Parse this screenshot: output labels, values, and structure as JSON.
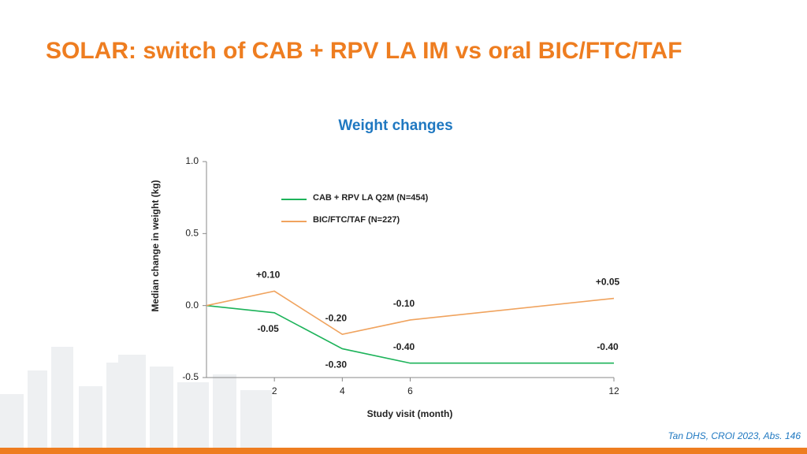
{
  "title": "SOLAR: switch of CAB + RPV LA IM vs oral BIC/FTC/TAF",
  "citation": "Tan DHS, CROI 2023, Abs. 146",
  "chart_data": {
    "type": "line",
    "title": "Weight changes",
    "x_label": "Study visit (month)",
    "y_label": "Median change in weight (kg)",
    "x": [
      0,
      2,
      4,
      6,
      12
    ],
    "series": [
      {
        "name": "CAB + RPV LA Q2M (N=454)",
        "color": "#1db35a",
        "values": [
          0,
          -0.05,
          -0.3,
          -0.4,
          -0.4
        ],
        "value_labels": [
          null,
          "-0.05",
          "-0.30",
          "-0.40",
          "-0.40"
        ]
      },
      {
        "name": "BIC/FTC/TAF (N=227)",
        "color": "#f0a35e",
        "values": [
          0,
          0.1,
          -0.2,
          -0.1,
          0.05
        ],
        "value_labels": [
          null,
          "+0.10",
          "-0.20",
          "-0.10",
          "+0.05"
        ]
      }
    ],
    "xlim": [
      0,
      12
    ],
    "xticks": [
      2,
      4,
      6,
      12
    ],
    "ylim": [
      -0.5,
      1
    ],
    "yticks": [
      {
        "value": -0.5,
        "label": "-0.5"
      },
      {
        "value": 0,
        "label": "0.0"
      },
      0.5,
      {
        "value": 1,
        "label": "1.0"
      }
    ],
    "legend": "top",
    "grid": false
  }
}
